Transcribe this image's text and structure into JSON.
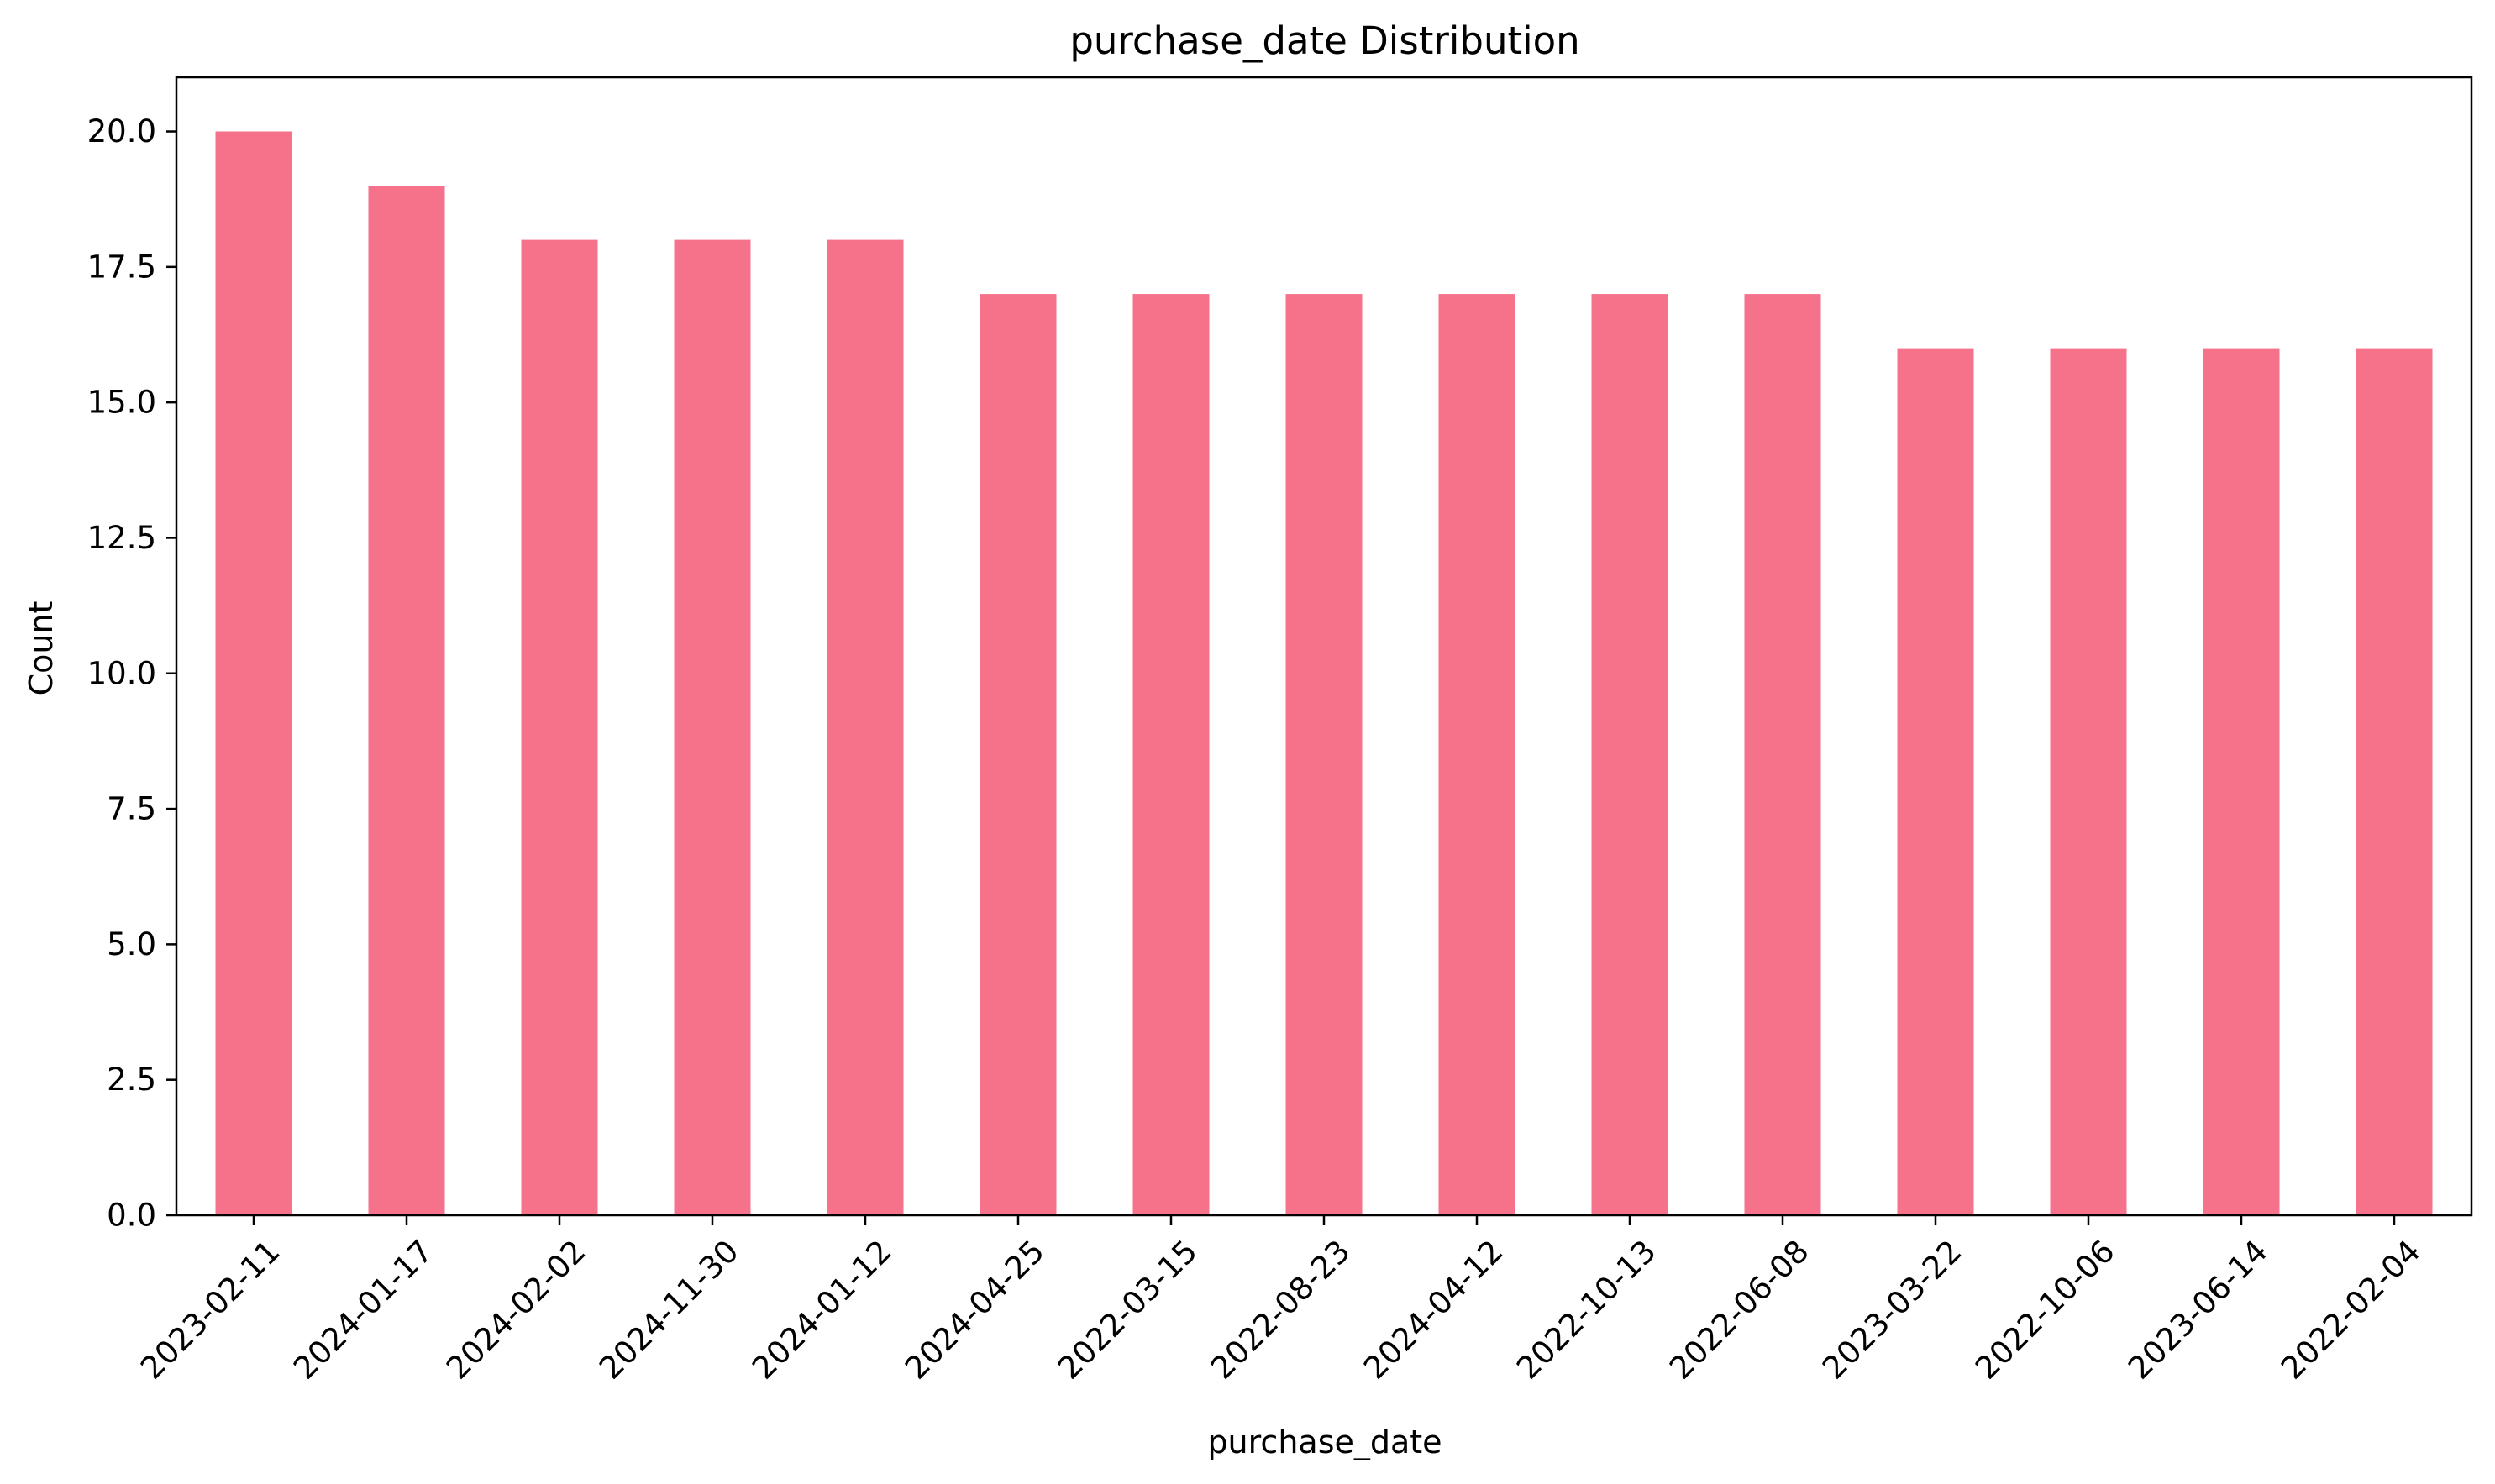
{
  "chart_data": {
    "type": "bar",
    "title": "purchase_date Distribution",
    "xlabel": "purchase_date",
    "ylabel": "Count",
    "categories": [
      "2023-02-11",
      "2024-01-17",
      "2024-02-02",
      "2024-11-30",
      "2024-01-12",
      "2024-04-25",
      "2022-03-15",
      "2022-08-23",
      "2024-04-12",
      "2022-10-13",
      "2022-06-08",
      "2023-03-22",
      "2022-10-06",
      "2023-06-14",
      "2022-02-04"
    ],
    "values": [
      20,
      19,
      18,
      18,
      18,
      17,
      17,
      17,
      17,
      17,
      17,
      16,
      16,
      16,
      16
    ],
    "ylim": [
      0,
      21
    ],
    "yticks": [
      0,
      2.5,
      5,
      7.5,
      10,
      12.5,
      15,
      17.5,
      20
    ],
    "ytick_labels": [
      "0.0",
      "2.5",
      "5.0",
      "7.5",
      "10.0",
      "12.5",
      "15.0",
      "17.5",
      "20.0"
    ],
    "bar_color": "#f6718a",
    "grid": false,
    "legend": "none"
  }
}
